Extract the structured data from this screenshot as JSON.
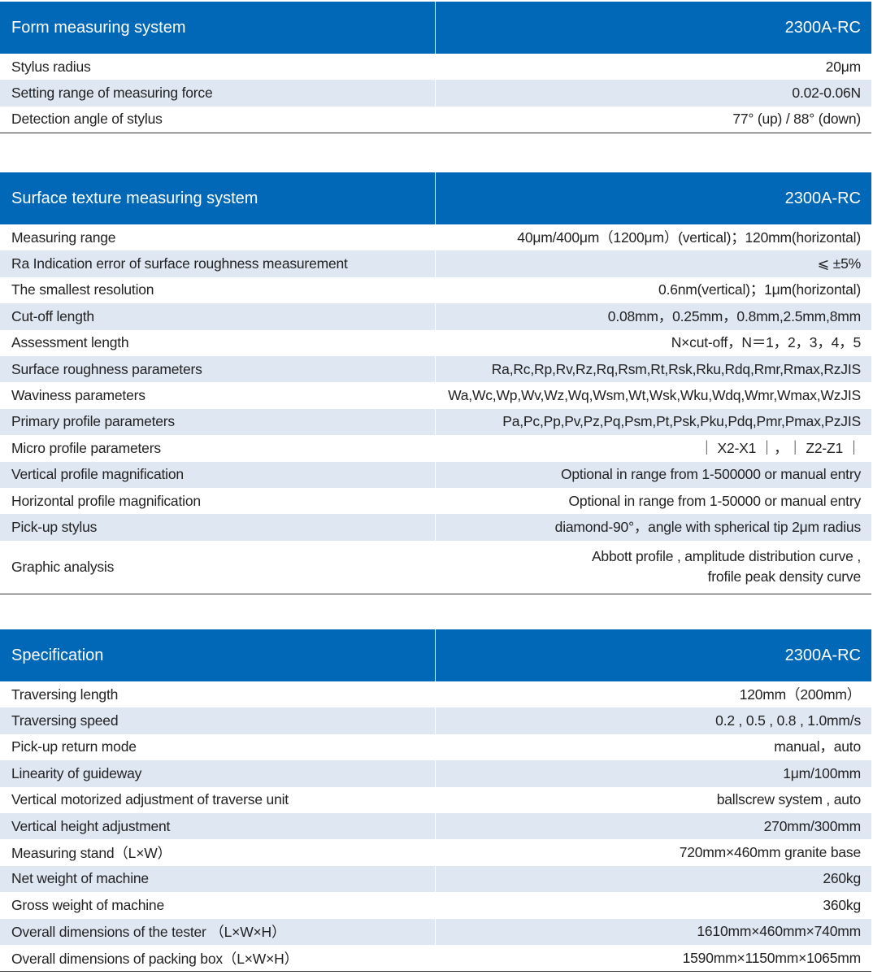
{
  "colors": {
    "header": "#0068b7",
    "stripe": "#dfe7f3"
  },
  "tables": [
    {
      "title": "Form measuring system",
      "model": "2300A-RC",
      "rows": [
        {
          "label": "Stylus radius",
          "value": "20μm"
        },
        {
          "label": "Setting range of measuring force",
          "value": "0.02-0.06N"
        },
        {
          "label": "Detection angle of stylus",
          "value": "77° (up) / 88° (down)"
        }
      ]
    },
    {
      "title": "Surface texture measuring system",
      "model": "2300A-RC",
      "rows": [
        {
          "label": "Measuring range",
          "value": "40μm/400μm（1200μm）(vertical)；120mm(horizontal)"
        },
        {
          "label": "Ra Indication error of surface roughness measurement",
          "value": "⩽ ±5%"
        },
        {
          "label": "The smallest resolution",
          "value": "0.6nm(vertical)；1μm(horizontal)"
        },
        {
          "label": "Cut-off length",
          "value": "0.08mm，0.25mm，0.8mm,2.5mm,8mm"
        },
        {
          "label": "Assessment length",
          "value": "N×cut-off，N＝1，2，3，4，5"
        },
        {
          "label": "Surface roughness parameters",
          "value": "Ra,Rc,Rp,Rv,Rz,Rq,Rsm,Rt,Rsk,Rku,Rdq,Rmr,Rmax,RzJIS"
        },
        {
          "label": "Waviness parameters",
          "value": "Wa,Wc,Wp,Wv,Wz,Wq,Wsm,Wt,Wsk,Wku,Wdq,Wmr,Wmax,WzJIS"
        },
        {
          "label": "Primary profile parameters",
          "value": "Pa,Pc,Pp,Pv,Pz,Pq,Psm,Pt,Psk,Pku,Pdq,Pmr,Pmax,PzJIS"
        },
        {
          "label": "Micro profile parameters",
          "value": "｜ X2-X1 ｜，｜ Z2-Z1 ｜"
        },
        {
          "label": "Vertical profile magnification",
          "value": "Optional in range from 1-500000 or manual entry"
        },
        {
          "label": "Horizontal profile magnification",
          "value": "Optional in range from 1-50000 or manual entry"
        },
        {
          "label": "Pick-up stylus",
          "value": "diamond-90°，angle with spherical tip 2μm radius"
        },
        {
          "label": "Graphic analysis",
          "value": "Abbott profile , amplitude distribution curve ,\nfrofile peak density curve"
        }
      ]
    },
    {
      "title": "Specification",
      "model": "2300A-RC",
      "rows": [
        {
          "label": "Traversing length",
          "value": "120mm（200mm）"
        },
        {
          "label": "Traversing speed",
          "value": "0.2 , 0.5 , 0.8 , 1.0mm/s"
        },
        {
          "label": "Pick-up return mode",
          "value": "manual，auto"
        },
        {
          "label": "Linearity of guideway",
          "value": "1μm/100mm"
        },
        {
          "label": "Vertical motorized adjustment of traverse unit",
          "value": "ballscrew system , auto"
        },
        {
          "label": "Vertical height adjustment",
          "value": "270mm/300mm"
        },
        {
          "label": "Measuring stand（L×W）",
          "value": "720mm×460mm granite base"
        },
        {
          "label": "Net weight of machine",
          "value": "260kg"
        },
        {
          "label": "Gross weight of machine",
          "value": "360kg"
        },
        {
          "label": "Overall dimensions of the tester （L×W×H）",
          "value": "1610mm×460mm×740mm"
        },
        {
          "label": "Overall dimensions of packing box（L×W×H）",
          "value": "1590mm×1150mm×1065mm"
        }
      ]
    }
  ]
}
